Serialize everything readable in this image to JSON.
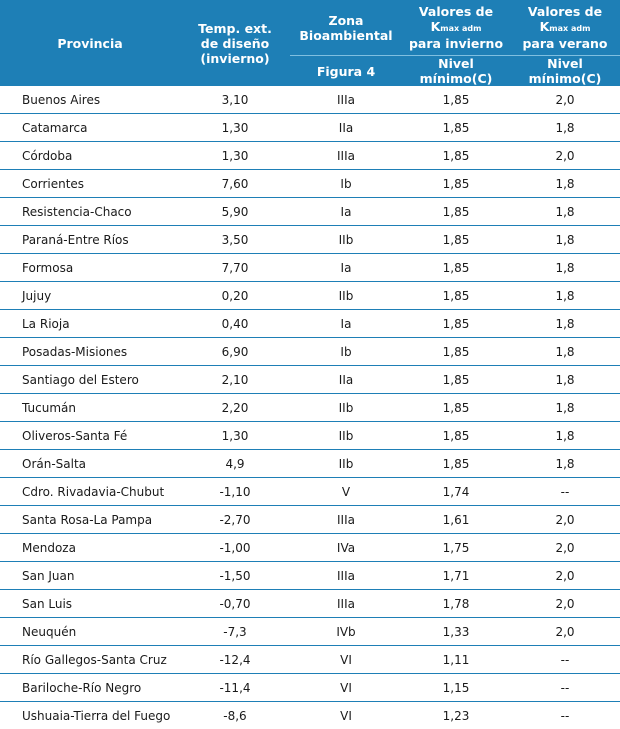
{
  "header": {
    "provincia": "Provincia",
    "temp": [
      "Temp. ext.",
      "de diseño",
      "(invierno)"
    ],
    "zona": [
      "Zona",
      "Bioambiental"
    ],
    "invierno": {
      "line1": "Valores de",
      "k": "K",
      "sub": "max adm",
      "line3": "para invierno"
    },
    "verano": {
      "line1": "Valores de",
      "k": "K",
      "sub": "max adm",
      "line3": "para verano"
    },
    "figura": "Figura 4",
    "nivel_inv": "Nivel mínimo(C)",
    "nivel_ver": "Nivel mínimo(C)"
  },
  "rows": [
    {
      "provincia": "Buenos Aires",
      "temp": "3,10",
      "zona": "IIIa",
      "invierno": "1,85",
      "verano": "2,0"
    },
    {
      "provincia": "Catamarca",
      "temp": "1,30",
      "zona": "IIa",
      "invierno": "1,85",
      "verano": "1,8"
    },
    {
      "provincia": "Córdoba",
      "temp": "1,30",
      "zona": "IIIa",
      "invierno": "1,85",
      "verano": "2,0"
    },
    {
      "provincia": "Corrientes",
      "temp": "7,60",
      "zona": "Ib",
      "invierno": "1,85",
      "verano": "1,8"
    },
    {
      "provincia": "Resistencia-Chaco",
      "temp": "5,90",
      "zona": "Ia",
      "invierno": "1,85",
      "verano": "1,8"
    },
    {
      "provincia": "Paraná-Entre Ríos",
      "temp": "3,50",
      "zona": "IIb",
      "invierno": "1,85",
      "verano": "1,8"
    },
    {
      "provincia": "Formosa",
      "temp": "7,70",
      "zona": "Ia",
      "invierno": "1,85",
      "verano": "1,8"
    },
    {
      "provincia": "Jujuy",
      "temp": "0,20",
      "zona": "IIb",
      "invierno": "1,85",
      "verano": "1,8"
    },
    {
      "provincia": "La Rioja",
      "temp": "0,40",
      "zona": "Ia",
      "invierno": "1,85",
      "verano": "1,8"
    },
    {
      "provincia": "Posadas-Misiones",
      "temp": "6,90",
      "zona": "Ib",
      "invierno": "1,85",
      "verano": "1,8"
    },
    {
      "provincia": "Santiago del Estero",
      "temp": "2,10",
      "zona": "IIa",
      "invierno": "1,85",
      "verano": "1,8"
    },
    {
      "provincia": "Tucumán",
      "temp": "2,20",
      "zona": "IIb",
      "invierno": "1,85",
      "verano": "1,8"
    },
    {
      "provincia": "Oliveros-Santa Fé",
      "temp": "1,30",
      "zona": "IIb",
      "invierno": "1,85",
      "verano": "1,8"
    },
    {
      "provincia": "Orán-Salta",
      "temp": "4,9",
      "zona": "IIb",
      "invierno": "1,85",
      "verano": "1,8"
    },
    {
      "provincia": "Cdro. Rivadavia-Chubut",
      "temp": "-1,10",
      "zona": "V",
      "invierno": "1,74",
      "verano": "--"
    },
    {
      "provincia": "Santa Rosa-La Pampa",
      "temp": "-2,70",
      "zona": "IIIa",
      "invierno": "1,61",
      "verano": "2,0"
    },
    {
      "provincia": "Mendoza",
      "temp": "-1,00",
      "zona": "IVa",
      "invierno": "1,75",
      "verano": "2,0"
    },
    {
      "provincia": "San Juan",
      "temp": "-1,50",
      "zona": "IIIa",
      "invierno": "1,71",
      "verano": "2,0"
    },
    {
      "provincia": "San Luis",
      "temp": "-0,70",
      "zona": "IIIa",
      "invierno": "1,78",
      "verano": "2,0"
    },
    {
      "provincia": "Neuquén",
      "temp": "-7,3",
      "zona": "IVb",
      "invierno": "1,33",
      "verano": "2,0"
    },
    {
      "provincia": "Río Gallegos-Santa Cruz",
      "temp": "-12,4",
      "zona": "VI",
      "invierno": "1,11",
      "verano": "--"
    },
    {
      "provincia": "Bariloche-Río Negro",
      "temp": "-11,4",
      "zona": "VI",
      "invierno": "1,15",
      "verano": "--"
    },
    {
      "provincia": "Ushuaia-Tierra del Fuego",
      "temp": "-8,6",
      "zona": "VI",
      "invierno": "1,23",
      "verano": "--"
    }
  ]
}
